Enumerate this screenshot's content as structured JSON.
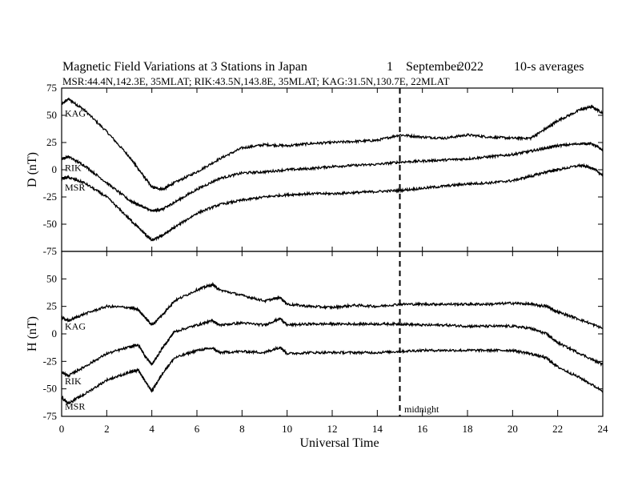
{
  "header": {
    "title": "Magnetic Field Variations at 3 Stations in Japan",
    "day": "1",
    "month": "September",
    "year": "2022",
    "averages": "10-s averages",
    "stations_line": "MSR:44.4N,142.3E, 35MLAT;  RIK:43.5N,143.8E, 35MLAT;  KAG:31.5N,130.7E, 22MLAT"
  },
  "annotations": {
    "midnight_label": "midnight",
    "midnight_ut": 15
  },
  "chart_data": [
    {
      "type": "line",
      "panel": "D",
      "ylabel": "D (nT)",
      "xlabel": "",
      "xlim": [
        0,
        24
      ],
      "ylim": [
        -75,
        75
      ],
      "yticks": [
        75,
        50,
        25,
        0,
        -25,
        -50,
        -75
      ],
      "x": [
        0,
        0.3,
        1,
        2,
        3,
        3.5,
        4,
        4.5,
        5,
        6,
        7,
        8,
        9,
        10,
        11,
        12,
        13,
        14,
        15,
        16,
        17,
        18,
        19,
        20,
        20.8,
        21.5,
        22,
        23,
        23.5,
        24
      ],
      "series": [
        {
          "name": "KAG",
          "color": "#000000",
          "values": [
            60,
            65,
            55,
            35,
            12,
            -2,
            -16,
            -18,
            -12,
            -2,
            10,
            20,
            23,
            22,
            24,
            25,
            26,
            27,
            32,
            30,
            29,
            32,
            30,
            29,
            29,
            38,
            45,
            55,
            58,
            52
          ]
        },
        {
          "name": "RIK",
          "color": "#000000",
          "values": [
            10,
            12,
            4,
            -12,
            -28,
            -33,
            -38,
            -36,
            -30,
            -18,
            -8,
            -3,
            -2,
            0,
            1,
            3,
            4,
            5,
            7,
            8,
            9,
            10,
            12,
            14,
            17,
            20,
            22,
            24,
            24,
            18
          ]
        },
        {
          "name": "MSR",
          "color": "#000000",
          "values": [
            -8,
            -7,
            -12,
            -25,
            -45,
            -55,
            -65,
            -60,
            -53,
            -40,
            -32,
            -28,
            -25,
            -23,
            -22,
            -22,
            -21,
            -20,
            -19,
            -17,
            -15,
            -13,
            -12,
            -10,
            -6,
            -2,
            0,
            4,
            2,
            -5
          ]
        }
      ],
      "series_labels": [
        "KAG",
        "RIK",
        "MSR"
      ]
    },
    {
      "type": "line",
      "panel": "H",
      "ylabel": "H (nT)",
      "xlabel": "Universal Time",
      "xlim": [
        0,
        24
      ],
      "ylim": [
        -75,
        75
      ],
      "yticks": [
        50,
        25,
        0,
        -25,
        -50,
        -75
      ],
      "xticks": [
        0,
        2,
        4,
        6,
        8,
        10,
        12,
        14,
        16,
        18,
        20,
        22,
        24
      ],
      "x": [
        0,
        0.3,
        1,
        2,
        3,
        3.4,
        3.7,
        4,
        4.5,
        5,
        6,
        6.7,
        7,
        8,
        9,
        9.7,
        10,
        11,
        12,
        13,
        14,
        15,
        16,
        17,
        18,
        19,
        20,
        20.8,
        21.5,
        22,
        23,
        24
      ],
      "series": [
        {
          "name": "KAG",
          "color": "#000000",
          "values": [
            15,
            12,
            18,
            25,
            24,
            22,
            15,
            8,
            18,
            30,
            40,
            45,
            40,
            35,
            30,
            33,
            27,
            25,
            24,
            26,
            25,
            27,
            27,
            27,
            27,
            27,
            28,
            27,
            25,
            20,
            13,
            5
          ]
        },
        {
          "name": "RIK",
          "color": "#000000",
          "values": [
            -35,
            -38,
            -30,
            -18,
            -12,
            -10,
            -20,
            -28,
            -12,
            2,
            8,
            12,
            8,
            10,
            8,
            14,
            8,
            9,
            9,
            9,
            9,
            9,
            8,
            8,
            7,
            7,
            7,
            5,
            0,
            -8,
            -18,
            -28
          ]
        },
        {
          "name": "MSR",
          "color": "#000000",
          "values": [
            -58,
            -63,
            -55,
            -42,
            -35,
            -33,
            -43,
            -52,
            -35,
            -22,
            -15,
            -13,
            -17,
            -16,
            -17,
            -12,
            -18,
            -17,
            -17,
            -17,
            -17,
            -16,
            -15,
            -15,
            -15,
            -15,
            -15,
            -18,
            -22,
            -30,
            -40,
            -52
          ]
        }
      ],
      "series_labels": [
        "KAG",
        "RIK",
        "MSR"
      ]
    }
  ]
}
